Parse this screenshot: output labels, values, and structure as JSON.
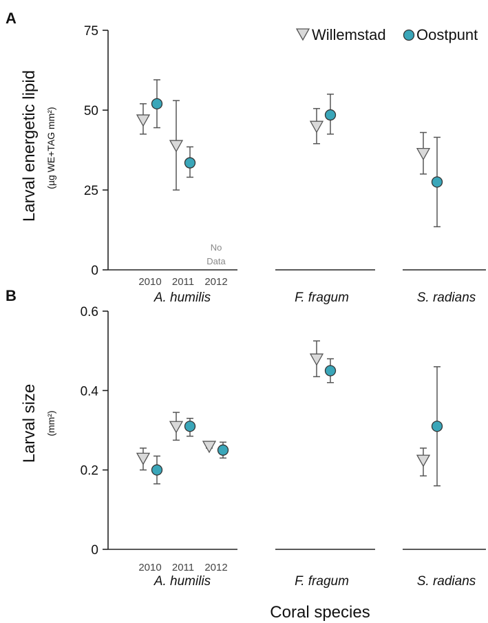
{
  "chart_data": [
    {
      "panel": "A",
      "type": "scatter",
      "ylabel": "Larval energetic lipid",
      "ylabel_sub": "(µg WE+TAG mm²)",
      "ylim": [
        0,
        75
      ],
      "yticks": [
        "0",
        "25",
        "50",
        "75"
      ],
      "groups": [
        {
          "label": "A. humilis",
          "categories": [
            "2010",
            "2011",
            "2012"
          ]
        },
        {
          "label": "F. fragum",
          "categories": [
            ""
          ]
        },
        {
          "label": "S. radians",
          "categories": [
            ""
          ]
        }
      ],
      "annotation": "No\nData",
      "series": [
        {
          "name": "Willemstad",
          "marker": "triangle-down",
          "color": "#d9d9d9",
          "points": [
            {
              "group": "A. humilis",
              "category": "2010",
              "y": 47,
              "err": [
                42.5,
                52
              ]
            },
            {
              "group": "A. humilis",
              "category": "2011",
              "y": 39,
              "err": [
                25,
                53
              ]
            },
            {
              "group": "F. fragum",
              "category": "",
              "y": 45,
              "err": [
                39.5,
                50.5
              ]
            },
            {
              "group": "S. radians",
              "category": "",
              "y": 36.5,
              "err": [
                30,
                43
              ]
            }
          ]
        },
        {
          "name": "Oostpunt",
          "marker": "circle",
          "color": "#3aa6b9",
          "points": [
            {
              "group": "A. humilis",
              "category": "2010",
              "y": 52,
              "err": [
                44.5,
                59.5
              ]
            },
            {
              "group": "A. humilis",
              "category": "2011",
              "y": 33.5,
              "err": [
                29,
                38.5
              ]
            },
            {
              "group": "F. fragum",
              "category": "",
              "y": 48.5,
              "err": [
                42.5,
                55
              ]
            },
            {
              "group": "S. radians",
              "category": "",
              "y": 27.5,
              "err": [
                13.5,
                41.5
              ]
            }
          ]
        }
      ]
    },
    {
      "panel": "B",
      "type": "scatter",
      "ylabel": "Larval size",
      "ylabel_sub": "(mm²)",
      "ylim": [
        0,
        0.6
      ],
      "yticks": [
        "0",
        "0.2",
        "0.4",
        "0.6"
      ],
      "xlabel": "Coral species",
      "groups": [
        {
          "label": "A. humilis",
          "categories": [
            "2010",
            "2011",
            "2012"
          ]
        },
        {
          "label": "F. fragum",
          "categories": [
            ""
          ]
        },
        {
          "label": "S. radians",
          "categories": [
            ""
          ]
        }
      ],
      "series": [
        {
          "name": "Willemstad",
          "marker": "triangle-down",
          "color": "#d9d9d9",
          "points": [
            {
              "group": "A. humilis",
              "category": "2010",
              "y": 0.23,
              "err": [
                0.2,
                0.255
              ]
            },
            {
              "group": "A. humilis",
              "category": "2011",
              "y": 0.31,
              "err": [
                0.275,
                0.345
              ]
            },
            {
              "group": "A. humilis",
              "category": "2012",
              "y": 0.26,
              "err": [
                0.255,
                0.27
              ]
            },
            {
              "group": "F. fragum",
              "category": "",
              "y": 0.48,
              "err": [
                0.435,
                0.525
              ]
            },
            {
              "group": "S. radians",
              "category": "",
              "y": 0.225,
              "err": [
                0.185,
                0.255
              ]
            }
          ]
        },
        {
          "name": "Oostpunt",
          "marker": "circle",
          "color": "#3aa6b9",
          "points": [
            {
              "group": "A. humilis",
              "category": "2010",
              "y": 0.2,
              "err": [
                0.165,
                0.235
              ]
            },
            {
              "group": "A. humilis",
              "category": "2011",
              "y": 0.31,
              "err": [
                0.285,
                0.33
              ]
            },
            {
              "group": "A. humilis",
              "category": "2012",
              "y": 0.25,
              "err": [
                0.23,
                0.27
              ]
            },
            {
              "group": "F. fragum",
              "category": "",
              "y": 0.45,
              "err": [
                0.42,
                0.48
              ]
            },
            {
              "group": "S. radians",
              "category": "",
              "y": 0.31,
              "err": [
                0.16,
                0.46
              ]
            }
          ]
        }
      ]
    }
  ],
  "legend": {
    "position": "top-right",
    "items": [
      "Willemstad",
      "Oostpunt"
    ]
  },
  "colors": {
    "willemstad": "#d9d9d9",
    "oostpunt": "#3aa6b9",
    "axis": "#222222",
    "error_bar": "#555555"
  }
}
